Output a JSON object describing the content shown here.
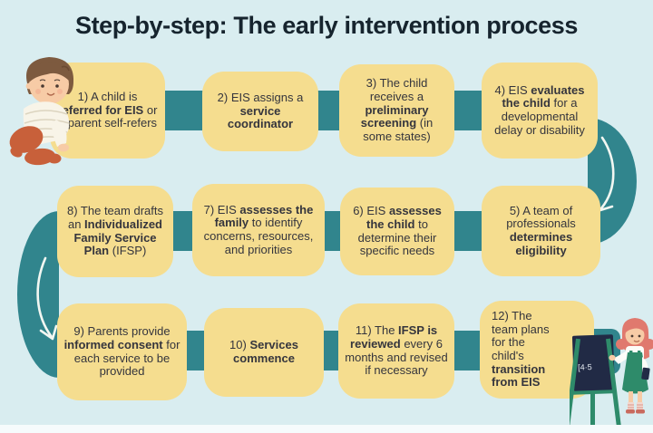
{
  "title": "Step-by-step: The early intervention process",
  "colors": {
    "background": "#d9edf0",
    "box_fill": "#f5dd8f",
    "connector": "#31858d",
    "title_text": "#16242e",
    "body_text": "#35353d",
    "arrow": "#f2f7f2",
    "easel_green": "#2e8b6a",
    "chalkboard": "#212a45"
  },
  "steps": [
    {
      "segments": [
        {
          "t": "1) A child is ",
          "b": false
        },
        {
          "t": "referred for EIS",
          "b": true
        },
        {
          "t": " or a parent self-refers",
          "b": false
        }
      ]
    },
    {
      "segments": [
        {
          "t": "2) EIS assigns a ",
          "b": false
        },
        {
          "t": "service coordinator",
          "b": true
        }
      ]
    },
    {
      "segments": [
        {
          "t": "3) The child receives a ",
          "b": false
        },
        {
          "t": "preliminary screening",
          "b": true
        },
        {
          "t": " (in some states)",
          "b": false
        }
      ]
    },
    {
      "segments": [
        {
          "t": "4) EIS ",
          "b": false
        },
        {
          "t": "evaluates the child",
          "b": true
        },
        {
          "t": " for a developmental delay or disability",
          "b": false
        }
      ]
    },
    {
      "segments": [
        {
          "t": "5) A team of professionals ",
          "b": false
        },
        {
          "t": "determines eligibility",
          "b": true
        }
      ]
    },
    {
      "segments": [
        {
          "t": "6) EIS ",
          "b": false
        },
        {
          "t": "assesses the child",
          "b": true
        },
        {
          "t": " to determine their specific needs",
          "b": false
        }
      ]
    },
    {
      "segments": [
        {
          "t": "7) EIS ",
          "b": false
        },
        {
          "t": "assesses the family",
          "b": true
        },
        {
          "t": " to identify concerns, resources, and priorities",
          "b": false
        }
      ]
    },
    {
      "segments": [
        {
          "t": "8) The team drafts an ",
          "b": false
        },
        {
          "t": "Individualized Family Service Plan",
          "b": true
        },
        {
          "t": " (IFSP)",
          "b": false
        }
      ]
    },
    {
      "segments": [
        {
          "t": "9) Parents provide ",
          "b": false
        },
        {
          "t": "informed consent",
          "b": true
        },
        {
          "t": " for each service to be provided",
          "b": false
        }
      ]
    },
    {
      "segments": [
        {
          "t": "10) ",
          "b": false
        },
        {
          "t": "Services commence",
          "b": true
        }
      ]
    },
    {
      "segments": [
        {
          "t": "11) The ",
          "b": false
        },
        {
          "t": "IFSP is reviewed",
          "b": true
        },
        {
          "t": " every 6 months and revised if necessary",
          "b": false
        }
      ]
    },
    {
      "segments": [
        {
          "t": "12) The team plans for the child's ",
          "b": false
        },
        {
          "t": "transition from EIS",
          "b": true
        }
      ]
    }
  ],
  "illustrations": {
    "baby_icon": "crawling-baby",
    "teacher_icon": "teacher-at-chalkboard",
    "chalk_text": "[4·5"
  }
}
